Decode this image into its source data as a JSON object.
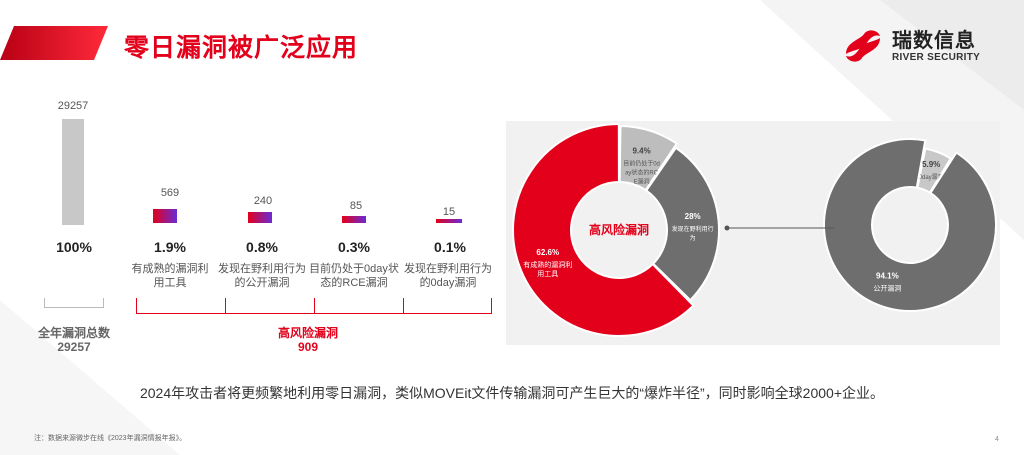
{
  "header": {
    "title": "零日漏洞被广泛应用",
    "logo_cn": "瑞数信息",
    "logo_en": "RIVER SECURITY"
  },
  "stats": {
    "total": {
      "value": "29257",
      "percent": "100%"
    },
    "items": [
      {
        "value": "569",
        "percent": "1.9%",
        "caption": "有成熟的漏洞利用工具"
      },
      {
        "value": "240",
        "percent": "0.8%",
        "caption": "发现在野利用行为的公开漏洞"
      },
      {
        "value": "85",
        "percent": "0.3%",
        "caption": "目前仍处于0day状态的RCE漏洞"
      },
      {
        "value": "15",
        "percent": "0.1%",
        "caption": "发现在野利用行为的0day漏洞"
      }
    ],
    "total_label": "全年漏洞总数",
    "total_label_value": "29257",
    "high_risk_label": "高风险漏洞",
    "high_risk_value": "909"
  },
  "chart_data": [
    {
      "type": "pie",
      "title": "高风险漏洞",
      "slices": [
        {
          "label": "有成熟的漏洞利用工具",
          "value": 62.6,
          "value_label": "62.6%",
          "color": "#e3001b"
        },
        {
          "label": "目前仍处于0day状态的RCE漏洞",
          "value": 9.4,
          "value_label": "9.4%",
          "color": "#bdbdbd"
        },
        {
          "label": "发现在野利用行为",
          "value": 28,
          "value_label": "28%",
          "color": "#6e6e6e"
        }
      ]
    },
    {
      "type": "pie",
      "title": "",
      "slices": [
        {
          "label": "0day漏洞",
          "value": 5.9,
          "value_label": "5.9%",
          "color": "#c8c8c8"
        },
        {
          "label": "公开漏洞",
          "value": 94.1,
          "value_label": "94.1%",
          "color": "#6e6e6e"
        }
      ]
    }
  ],
  "summary": "2024年攻击者将更频繁地利用零日漏洞，类似MOVEit文件传输漏洞可产生巨大的“爆炸半径”，同时影响全球2000+企业。",
  "footnote": "注：数据来源微步在线《2023年漏洞情报年报》。",
  "page_number": "4",
  "colors": {
    "brand_red": "#e3001b",
    "gray": "#6e6e6e",
    "light_gray": "#c8c8c8",
    "purple": "#6b2bd6"
  }
}
